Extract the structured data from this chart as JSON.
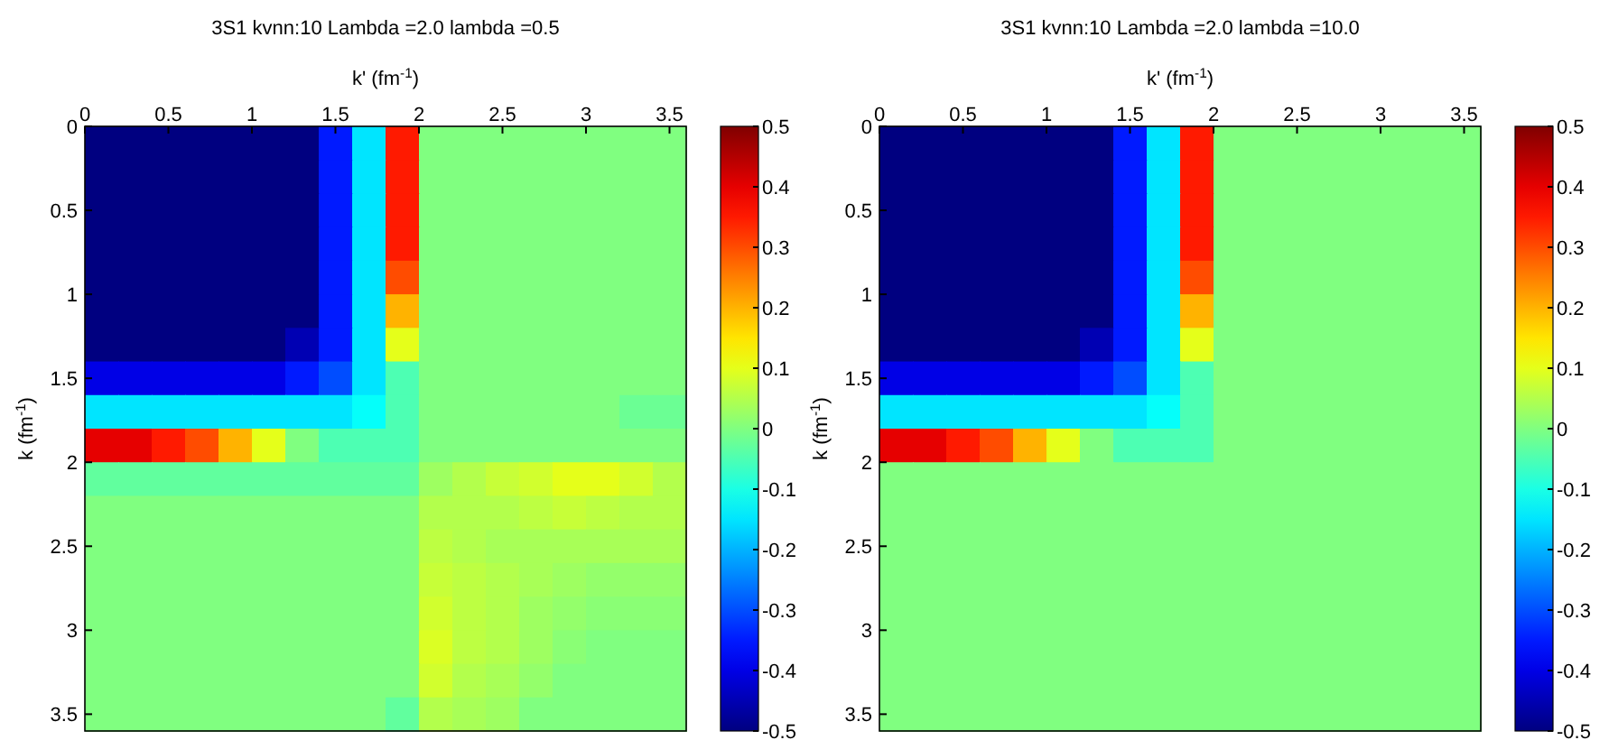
{
  "chart_data": [
    {
      "type": "heatmap",
      "title": "3S1 kvnn:10 Lambda =2.0 lambda =0.5",
      "xlabel": "k' (fm$^{-1}$)",
      "ylabel": "k (fm$^{-1}$)",
      "x": [
        0.1,
        0.3,
        0.5,
        0.7,
        0.9,
        1.1,
        1.3,
        1.5,
        1.7,
        1.9,
        2.1,
        2.3,
        2.5,
        2.7,
        2.9,
        3.1,
        3.3,
        3.5
      ],
      "y": [
        0.1,
        0.3,
        0.5,
        0.7,
        0.9,
        1.1,
        1.3,
        1.5,
        1.7,
        1.9,
        2.1,
        2.3,
        2.5,
        2.7,
        2.9,
        3.1,
        3.3,
        3.5
      ],
      "xlim": [
        0,
        3.6
      ],
      "xticks": [
        0,
        0.5,
        1,
        1.5,
        2,
        2.5,
        3,
        3.5
      ],
      "ylim": [
        3.6,
        0
      ],
      "yticks": [
        0,
        0.5,
        1,
        1.5,
        2,
        2.5,
        3,
        3.5
      ],
      "clim": [
        -0.5,
        0.5
      ],
      "cticks": [
        -0.5,
        -0.4,
        -0.3,
        -0.2,
        -0.1,
        0,
        0.1,
        0.2,
        0.3,
        0.4,
        0.5
      ],
      "cells": [
        [
          -0.5,
          -0.5,
          -0.5,
          -0.5,
          -0.5,
          -0.5,
          -0.5,
          -0.35,
          -0.15,
          0.35,
          0,
          0,
          0,
          0,
          0,
          0,
          0,
          0
        ],
        [
          -0.5,
          -0.5,
          -0.5,
          -0.5,
          -0.5,
          -0.5,
          -0.5,
          -0.35,
          -0.15,
          0.35,
          0,
          0,
          0,
          0,
          0,
          0,
          0,
          0
        ],
        [
          -0.5,
          -0.5,
          -0.5,
          -0.5,
          -0.5,
          -0.5,
          -0.5,
          -0.35,
          -0.15,
          0.35,
          0,
          0,
          0,
          0,
          0,
          0,
          0,
          0
        ],
        [
          -0.5,
          -0.5,
          -0.5,
          -0.5,
          -0.5,
          -0.5,
          -0.5,
          -0.35,
          -0.15,
          0.35,
          0,
          0,
          0,
          0,
          0,
          0,
          0,
          0
        ],
        [
          -0.5,
          -0.5,
          -0.5,
          -0.5,
          -0.5,
          -0.5,
          -0.5,
          -0.35,
          -0.15,
          0.3,
          0,
          0,
          0,
          0,
          0,
          0,
          0,
          0
        ],
        [
          -0.5,
          -0.5,
          -0.5,
          -0.5,
          -0.5,
          -0.5,
          -0.5,
          -0.35,
          -0.15,
          0.2,
          0,
          0,
          0,
          0,
          0,
          0,
          0,
          0
        ],
        [
          -0.5,
          -0.5,
          -0.5,
          -0.5,
          -0.5,
          -0.5,
          -0.45,
          -0.35,
          -0.15,
          0.1,
          0,
          0,
          0,
          0,
          0,
          0,
          0,
          0
        ],
        [
          -0.4,
          -0.4,
          -0.4,
          -0.4,
          -0.4,
          -0.4,
          -0.35,
          -0.3,
          -0.15,
          -0.05,
          0,
          0,
          0,
          0,
          0,
          0,
          0,
          0
        ],
        [
          -0.15,
          -0.15,
          -0.15,
          -0.15,
          -0.15,
          -0.15,
          -0.15,
          -0.15,
          -0.12,
          -0.05,
          0,
          0,
          0,
          0,
          0,
          0,
          -0.02,
          -0.02
        ],
        [
          0.4,
          0.4,
          0.35,
          0.3,
          0.2,
          0.1,
          0,
          -0.05,
          -0.05,
          -0.05,
          0,
          0,
          0,
          0,
          0,
          0,
          0,
          0
        ],
        [
          -0.03,
          -0.03,
          -0.03,
          -0.03,
          -0.03,
          -0.03,
          -0.03,
          -0.03,
          -0.03,
          -0.03,
          0.03,
          0.05,
          0.07,
          0.08,
          0.1,
          0.1,
          0.08,
          0.05
        ],
        [
          0,
          0,
          0,
          0,
          0,
          0,
          0,
          0,
          0,
          0,
          0.05,
          0.05,
          0.05,
          0.06,
          0.07,
          0.06,
          0.05,
          0.05
        ],
        [
          0,
          0,
          0,
          0,
          0,
          0,
          0,
          0,
          0,
          0,
          0.06,
          0.05,
          0.04,
          0.04,
          0.04,
          0.04,
          0.04,
          0.04
        ],
        [
          0,
          0,
          0,
          0,
          0,
          0,
          0,
          0,
          0,
          0,
          0.07,
          0.06,
          0.05,
          0.04,
          0.03,
          0.02,
          0.02,
          0.02
        ],
        [
          0,
          0,
          0,
          0,
          0,
          0,
          0,
          0,
          0,
          0,
          0.08,
          0.06,
          0.05,
          0.03,
          0.02,
          0.01,
          0.01,
          0.01
        ],
        [
          0,
          0,
          0,
          0,
          0,
          0,
          0,
          0,
          0,
          0,
          0.09,
          0.06,
          0.05,
          0.03,
          0.01,
          0,
          0,
          0
        ],
        [
          0,
          0,
          0,
          0,
          0,
          0,
          0,
          0,
          0,
          0,
          0.08,
          0.05,
          0.04,
          0.02,
          0,
          0,
          0,
          0
        ],
        [
          0,
          0,
          0,
          0,
          0,
          0,
          0,
          0,
          0,
          -0.03,
          0.05,
          0.04,
          0.03,
          0,
          0,
          0,
          0,
          0
        ]
      ]
    },
    {
      "type": "heatmap",
      "title": "3S1 kvnn:10 Lambda =2.0 lambda =10.0",
      "xlabel": "k' (fm$^{-1}$)",
      "ylabel": "k (fm$^{-1}$)",
      "x": [
        0.1,
        0.3,
        0.5,
        0.7,
        0.9,
        1.1,
        1.3,
        1.5,
        1.7,
        1.9,
        2.1,
        2.3,
        2.5,
        2.7,
        2.9,
        3.1,
        3.3,
        3.5
      ],
      "y": [
        0.1,
        0.3,
        0.5,
        0.7,
        0.9,
        1.1,
        1.3,
        1.5,
        1.7,
        1.9,
        2.1,
        2.3,
        2.5,
        2.7,
        2.9,
        3.1,
        3.3,
        3.5
      ],
      "xlim": [
        0,
        3.6
      ],
      "xticks": [
        0,
        0.5,
        1,
        1.5,
        2,
        2.5,
        3,
        3.5
      ],
      "ylim": [
        3.6,
        0
      ],
      "yticks": [
        0,
        0.5,
        1,
        1.5,
        2,
        2.5,
        3,
        3.5
      ],
      "clim": [
        -0.5,
        0.5
      ],
      "cticks": [
        -0.5,
        -0.4,
        -0.3,
        -0.2,
        -0.1,
        0,
        0.1,
        0.2,
        0.3,
        0.4,
        0.5
      ],
      "cells": [
        [
          -0.5,
          -0.5,
          -0.5,
          -0.5,
          -0.5,
          -0.5,
          -0.5,
          -0.35,
          -0.15,
          0.35,
          0,
          0,
          0,
          0,
          0,
          0,
          0,
          0
        ],
        [
          -0.5,
          -0.5,
          -0.5,
          -0.5,
          -0.5,
          -0.5,
          -0.5,
          -0.35,
          -0.15,
          0.35,
          0,
          0,
          0,
          0,
          0,
          0,
          0,
          0
        ],
        [
          -0.5,
          -0.5,
          -0.5,
          -0.5,
          -0.5,
          -0.5,
          -0.5,
          -0.35,
          -0.15,
          0.35,
          0,
          0,
          0,
          0,
          0,
          0,
          0,
          0
        ],
        [
          -0.5,
          -0.5,
          -0.5,
          -0.5,
          -0.5,
          -0.5,
          -0.5,
          -0.35,
          -0.15,
          0.35,
          0,
          0,
          0,
          0,
          0,
          0,
          0,
          0
        ],
        [
          -0.5,
          -0.5,
          -0.5,
          -0.5,
          -0.5,
          -0.5,
          -0.5,
          -0.35,
          -0.15,
          0.3,
          0,
          0,
          0,
          0,
          0,
          0,
          0,
          0
        ],
        [
          -0.5,
          -0.5,
          -0.5,
          -0.5,
          -0.5,
          -0.5,
          -0.5,
          -0.35,
          -0.15,
          0.2,
          0,
          0,
          0,
          0,
          0,
          0,
          0,
          0
        ],
        [
          -0.5,
          -0.5,
          -0.5,
          -0.5,
          -0.5,
          -0.5,
          -0.45,
          -0.35,
          -0.15,
          0.1,
          0,
          0,
          0,
          0,
          0,
          0,
          0,
          0
        ],
        [
          -0.4,
          -0.4,
          -0.4,
          -0.4,
          -0.4,
          -0.4,
          -0.35,
          -0.3,
          -0.15,
          -0.05,
          0,
          0,
          0,
          0,
          0,
          0,
          0,
          0
        ],
        [
          -0.15,
          -0.15,
          -0.15,
          -0.15,
          -0.15,
          -0.15,
          -0.15,
          -0.15,
          -0.12,
          -0.05,
          0,
          0,
          0,
          0,
          0,
          0,
          0,
          0
        ],
        [
          0.4,
          0.4,
          0.35,
          0.3,
          0.2,
          0.1,
          0,
          -0.05,
          -0.05,
          -0.05,
          0,
          0,
          0,
          0,
          0,
          0,
          0,
          0
        ],
        [
          0,
          0,
          0,
          0,
          0,
          0,
          0,
          0,
          0,
          0,
          0,
          0,
          0,
          0,
          0,
          0,
          0,
          0
        ],
        [
          0,
          0,
          0,
          0,
          0,
          0,
          0,
          0,
          0,
          0,
          0,
          0,
          0,
          0,
          0,
          0,
          0,
          0
        ],
        [
          0,
          0,
          0,
          0,
          0,
          0,
          0,
          0,
          0,
          0,
          0,
          0,
          0,
          0,
          0,
          0,
          0,
          0
        ],
        [
          0,
          0,
          0,
          0,
          0,
          0,
          0,
          0,
          0,
          0,
          0,
          0,
          0,
          0,
          0,
          0,
          0,
          0
        ],
        [
          0,
          0,
          0,
          0,
          0,
          0,
          0,
          0,
          0,
          0,
          0,
          0,
          0,
          0,
          0,
          0,
          0,
          0
        ],
        [
          0,
          0,
          0,
          0,
          0,
          0,
          0,
          0,
          0,
          0,
          0,
          0,
          0,
          0,
          0,
          0,
          0,
          0
        ],
        [
          0,
          0,
          0,
          0,
          0,
          0,
          0,
          0,
          0,
          0,
          0,
          0,
          0,
          0,
          0,
          0,
          0,
          0
        ],
        [
          0,
          0,
          0,
          0,
          0,
          0,
          0,
          0,
          0,
          0,
          0,
          0,
          0,
          0,
          0,
          0,
          0,
          0
        ]
      ]
    }
  ]
}
